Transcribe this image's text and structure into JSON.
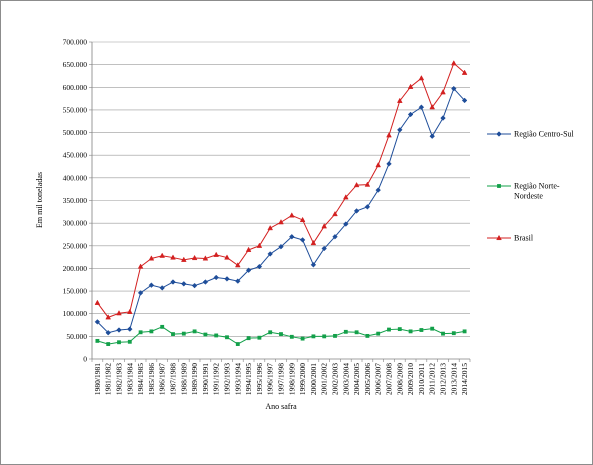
{
  "chart_data": {
    "type": "line",
    "xlabel": "Ano safra",
    "ylabel": "Em mil toneladas",
    "ylim": [
      0,
      700000
    ],
    "yticks": [
      "0",
      "50.000",
      "100.000",
      "150.000",
      "200.000",
      "250.000",
      "300.000",
      "350.000",
      "400.000",
      "450.000",
      "500.000",
      "550.000",
      "600.000",
      "650.000",
      "700.000"
    ],
    "grid": true,
    "legend_position": "right",
    "x": [
      "1980/1981",
      "1981/1982",
      "1982/1983",
      "1983/1984",
      "1984/1985",
      "1985/1986",
      "1986/1987",
      "1987/1988",
      "1988/1989",
      "1989/1990",
      "1990/1991",
      "1991/1992",
      "1992/1993",
      "1993/1994",
      "1994/1995",
      "1995/1996",
      "1996/1997",
      "1997/1998",
      "1998/1999",
      "1999/2000",
      "2000/2001",
      "2001/2002",
      "2002/2003",
      "2003/2004",
      "2004/2005",
      "2005/2006",
      "2006/2007",
      "2007/2008",
      "2008/2009",
      "2009/2010",
      "2010/2011",
      "2011/2012",
      "2012/2013",
      "2013/2014",
      "2014/2015"
    ],
    "series": [
      {
        "name": "Região Centro-Sul",
        "color": "#1f4e9a",
        "marker": "diamond",
        "values": [
          82000,
          58000,
          64000,
          66000,
          146000,
          163000,
          157000,
          170000,
          166000,
          162000,
          170000,
          180000,
          177000,
          172000,
          196000,
          204000,
          232000,
          248000,
          270000,
          263000,
          208000,
          244000,
          270000,
          298000,
          327000,
          336000,
          373000,
          431000,
          506000,
          540000,
          556000,
          492000,
          532000,
          597000,
          571000
        ]
      },
      {
        "name": "Região Norte-\nNordeste",
        "color": "#13a04a",
        "marker": "square",
        "values": [
          40000,
          33000,
          37000,
          38000,
          59000,
          61000,
          71000,
          55000,
          56000,
          61000,
          54000,
          52000,
          48000,
          33000,
          46000,
          47000,
          59000,
          55000,
          49000,
          45000,
          50000,
          50000,
          51000,
          60000,
          59000,
          51000,
          56000,
          65000,
          66000,
          61000,
          64000,
          67000,
          56000,
          57000,
          61000
        ]
      },
      {
        "name": "Brasil",
        "color": "#d32020",
        "marker": "triangle",
        "values": [
          124000,
          92000,
          101000,
          104000,
          204000,
          222000,
          228000,
          224000,
          219000,
          223000,
          222000,
          230000,
          224000,
          207000,
          241000,
          250000,
          289000,
          302000,
          317000,
          307000,
          256000,
          293000,
          320000,
          357000,
          384000,
          385000,
          428000,
          494000,
          570000,
          601000,
          620000,
          556000,
          589000,
          653000,
          632000
        ]
      }
    ]
  }
}
